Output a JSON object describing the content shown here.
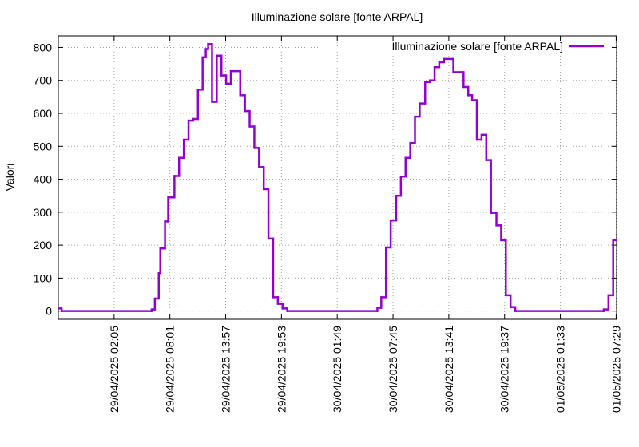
{
  "chart_data": {
    "type": "line",
    "title": "Illuminazione solare [fonte ARPAL]",
    "ylabel": "Valori",
    "grid": true,
    "legend": "top-right",
    "step": true,
    "xlim": [
      "2025-04-28 20:09",
      "2025-05-01 07:32"
    ],
    "ylim": [
      -25,
      835
    ],
    "yticks": [
      0,
      100,
      200,
      300,
      400,
      500,
      600,
      700,
      800
    ],
    "xticks": [
      {
        "value": "2025-04-29 02:05",
        "label": "29/04/2025 02:05"
      },
      {
        "value": "2025-04-29 08:01",
        "label": "29/04/2025 08:01"
      },
      {
        "value": "2025-04-29 13:57",
        "label": "29/04/2025 13:57"
      },
      {
        "value": "2025-04-29 19:53",
        "label": "29/04/2025 19:53"
      },
      {
        "value": "2025-04-30 01:49",
        "label": "30/04/2025 01:49"
      },
      {
        "value": "2025-04-30 07:45",
        "label": "30/04/2025 07:45"
      },
      {
        "value": "2025-04-30 13:41",
        "label": "30/04/2025 13:41"
      },
      {
        "value": "2025-04-30 19:37",
        "label": "30/04/2025 19:37"
      },
      {
        "value": "2025-05-01 01:33",
        "label": "01/05/2025 01:33"
      },
      {
        "value": "2025-05-01 07:29",
        "label": "01/05/2025 07:29"
      }
    ],
    "x": [
      "2025-04-28 20:09",
      "2025-04-28 20:30",
      "2025-04-29 06:05",
      "2025-04-29 06:25",
      "2025-04-29 06:50",
      "2025-04-29 07:00",
      "2025-04-29 07:30",
      "2025-04-29 07:50",
      "2025-04-29 08:30",
      "2025-04-29 09:00",
      "2025-04-29 09:30",
      "2025-04-29 10:00",
      "2025-04-29 10:30",
      "2025-04-29 11:00",
      "2025-04-29 11:30",
      "2025-04-29 11:50",
      "2025-04-29 12:05",
      "2025-04-29 12:30",
      "2025-04-29 13:00",
      "2025-04-29 13:30",
      "2025-04-29 14:00",
      "2025-04-29 14:30",
      "2025-04-29 15:30",
      "2025-04-29 16:00",
      "2025-04-29 16:30",
      "2025-04-29 17:00",
      "2025-04-29 17:30",
      "2025-04-29 18:00",
      "2025-04-29 18:30",
      "2025-04-29 19:00",
      "2025-04-29 19:30",
      "2025-04-29 20:00",
      "2025-04-29 20:30",
      "2025-04-30 06:05",
      "2025-04-30 06:30",
      "2025-04-30 07:00",
      "2025-04-30 07:30",
      "2025-04-30 08:05",
      "2025-04-30 08:35",
      "2025-04-30 09:05",
      "2025-04-30 09:35",
      "2025-04-30 10:05",
      "2025-04-30 10:35",
      "2025-04-30 11:10",
      "2025-04-30 11:40",
      "2025-04-30 12:10",
      "2025-04-30 12:40",
      "2025-04-30 13:10",
      "2025-04-30 14:10",
      "2025-04-30 15:15",
      "2025-04-30 15:45",
      "2025-04-30 16:10",
      "2025-04-30 16:40",
      "2025-04-30 17:10",
      "2025-04-30 17:40",
      "2025-04-30 18:10",
      "2025-04-30 18:45",
      "2025-04-30 19:15",
      "2025-04-30 19:45",
      "2025-04-30 20:15",
      "2025-04-30 20:45",
      "2025-05-01 06:10",
      "2025-05-01 06:40",
      "2025-05-01 07:10",
      "2025-05-01 07:30"
    ],
    "series": [
      {
        "name": "Illuminazione solare [fonte ARPAL]",
        "color": "#9400d3",
        "values": [
          8,
          0,
          5,
          38,
          115,
          190,
          272,
          345,
          410,
          465,
          520,
          578,
          583,
          672,
          770,
          795,
          810,
          635,
          775,
          715,
          690,
          728,
          655,
          607,
          560,
          495,
          437,
          370,
          220,
          42,
          22,
          8,
          0,
          10,
          42,
          193,
          275,
          350,
          408,
          465,
          510,
          590,
          630,
          695,
          700,
          740,
          755,
          765,
          725,
          680,
          655,
          640,
          520,
          535,
          458,
          298,
          260,
          215,
          48,
          12,
          0,
          5,
          48,
          215,
          215
        ]
      }
    ]
  }
}
